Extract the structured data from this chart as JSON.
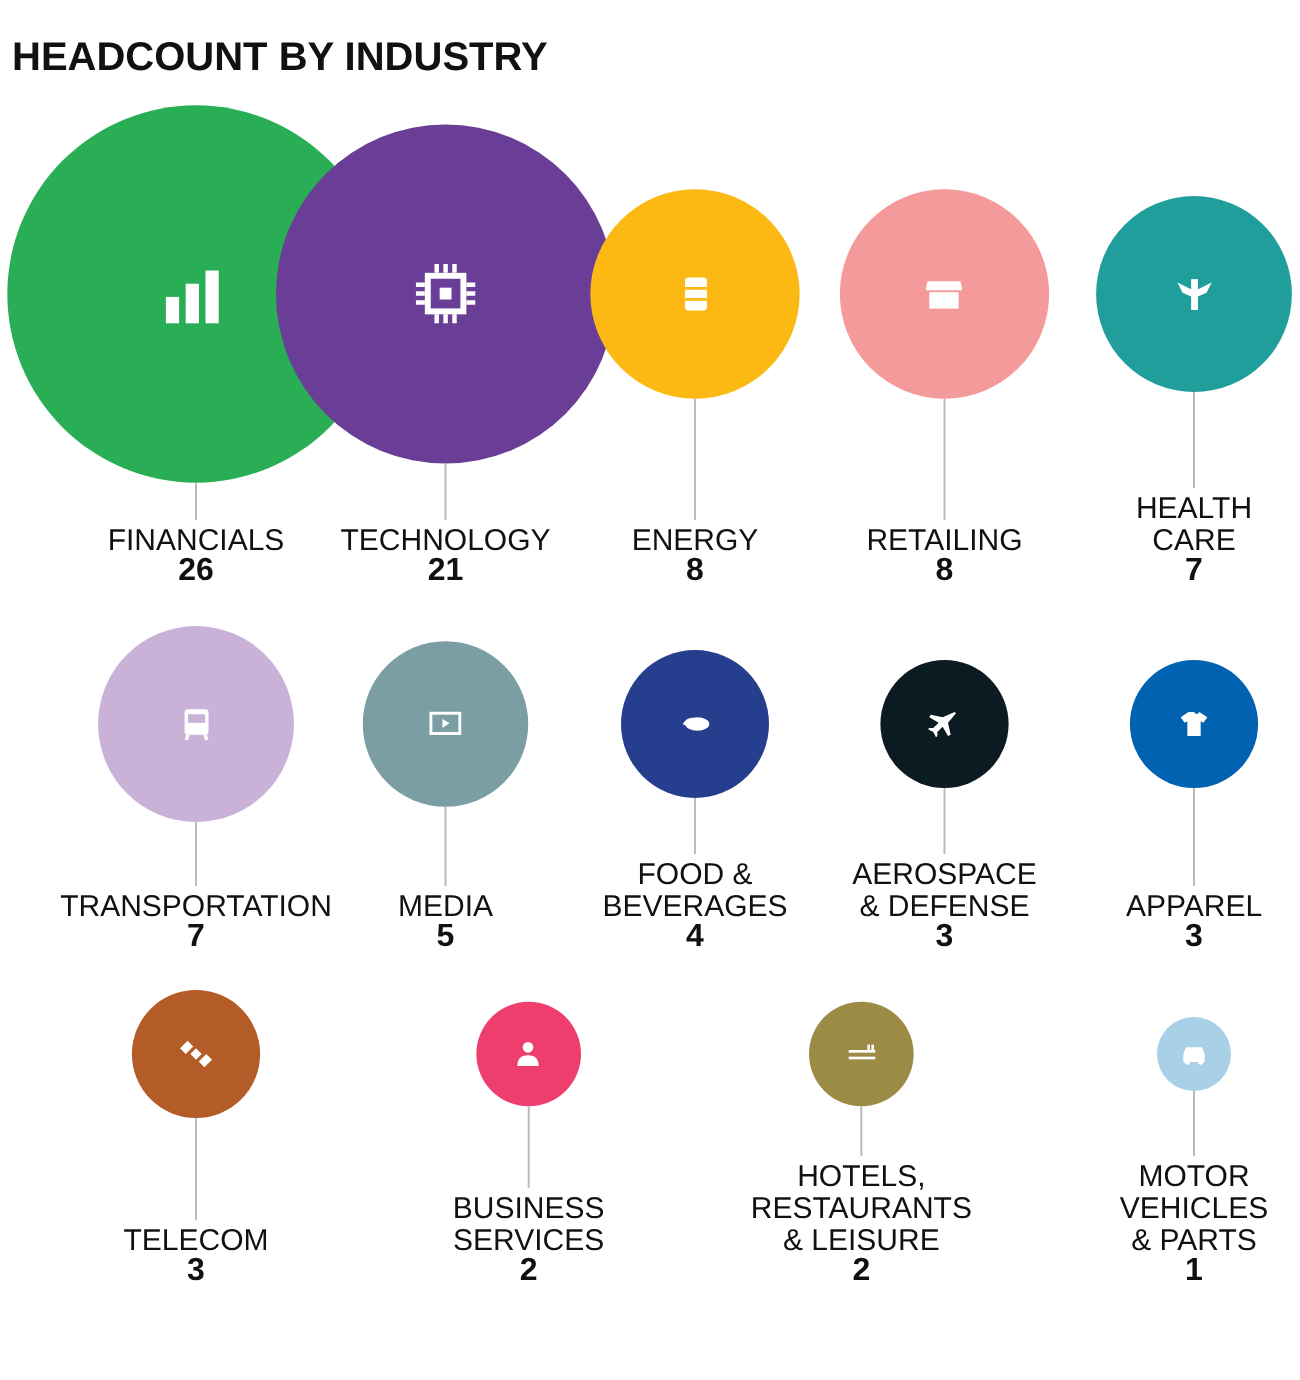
{
  "chart_data": {
    "type": "other",
    "title": "HEADCOUNT BY INDUSTRY",
    "data_labels": true,
    "categories": [
      "FINANCIALS",
      "TECHNOLOGY",
      "ENERGY",
      "RETAILING",
      "HEALTH\nCARE",
      "TRANSPORTATION",
      "MEDIA",
      "FOOD &\nBEVERAGES",
      "AEROSPACE\n& DEFENSE",
      "APPAREL",
      "TELECOM",
      "BUSINESS\nSERVICES",
      "HOTELS,\nRESTAURANTS\n& LEISURE",
      "MOTOR\nVEHICLES\n& PARTS"
    ],
    "values": [
      26,
      21,
      8,
      8,
      7,
      7,
      5,
      4,
      3,
      3,
      3,
      2,
      2,
      1
    ],
    "colors": [
      "#2aae55",
      "#6a3d96",
      "#fdb913",
      "#f49a9a",
      "#1f9e9b",
      "#c9b1d8",
      "#7a9ea3",
      "#263e8e",
      "#0c1a22",
      "#0062b1",
      "#b35c28",
      "#ee3e6e",
      "#9b8b45",
      "#a8d0e6"
    ]
  }
}
